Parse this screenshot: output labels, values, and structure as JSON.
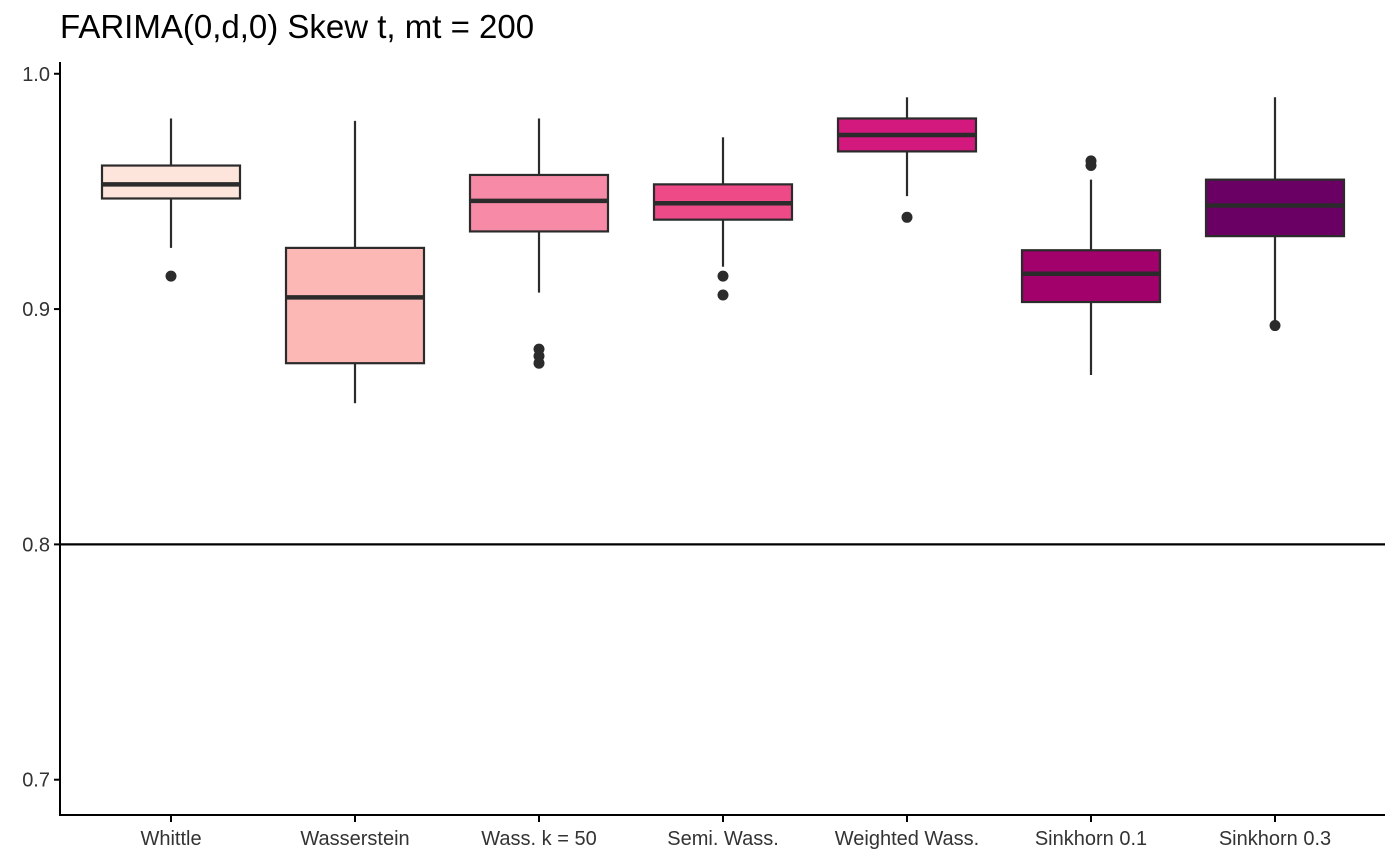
{
  "chart_data": {
    "type": "box",
    "title": "FARIMA(0,d,0) Skew t, mt = 200",
    "xlabel": "",
    "ylabel": "",
    "ylim": [
      0.685,
      1.005
    ],
    "yticks": [
      0.7,
      0.8,
      0.9,
      1.0
    ],
    "ytick_labels": [
      "0.7",
      "0.8",
      "0.9",
      "1.0"
    ],
    "grid": false,
    "legend": "none",
    "reference_line": 0.8,
    "categories": [
      "Whittle",
      "Wasserstein",
      "Wass. k = 50",
      "Semi. Wass.",
      "Weighted Wass.",
      "Sinkhorn 0.1",
      "Sinkhorn 0.3"
    ],
    "boxes": [
      {
        "category": "Whittle",
        "lower_whisker": 0.926,
        "q1": 0.947,
        "median": 0.953,
        "q3": 0.961,
        "upper_whisker": 0.981,
        "outliers": [
          0.914
        ],
        "color": "#FEE5DC"
      },
      {
        "category": "Wasserstein",
        "lower_whisker": 0.86,
        "q1": 0.877,
        "median": 0.905,
        "q3": 0.926,
        "upper_whisker": 0.98,
        "outliers": [],
        "color": "#FBB8B4"
      },
      {
        "category": "Wass. k = 50",
        "lower_whisker": 0.907,
        "q1": 0.933,
        "median": 0.946,
        "q3": 0.957,
        "upper_whisker": 0.981,
        "outliers": [
          0.883,
          0.88,
          0.877
        ],
        "color": "#F78BA7"
      },
      {
        "category": "Semi. Wass.",
        "lower_whisker": 0.918,
        "q1": 0.938,
        "median": 0.945,
        "q3": 0.953,
        "upper_whisker": 0.973,
        "outliers": [
          0.914,
          0.906
        ],
        "color": "#EE4A88"
      },
      {
        "category": "Weighted Wass.",
        "lower_whisker": 0.948,
        "q1": 0.967,
        "median": 0.974,
        "q3": 0.981,
        "upper_whisker": 0.99,
        "outliers": [
          0.939
        ],
        "color": "#D3197E"
      },
      {
        "category": "Sinkhorn 0.1",
        "lower_whisker": 0.872,
        "q1": 0.903,
        "median": 0.915,
        "q3": 0.925,
        "upper_whisker": 0.955,
        "outliers": [
          0.963,
          0.961
        ],
        "color": "#A2006A"
      },
      {
        "category": "Sinkhorn 0.3",
        "lower_whisker": 0.894,
        "q1": 0.931,
        "median": 0.944,
        "q3": 0.955,
        "upper_whisker": 0.99,
        "outliers": [
          0.893
        ],
        "color": "#6A0063"
      }
    ]
  }
}
